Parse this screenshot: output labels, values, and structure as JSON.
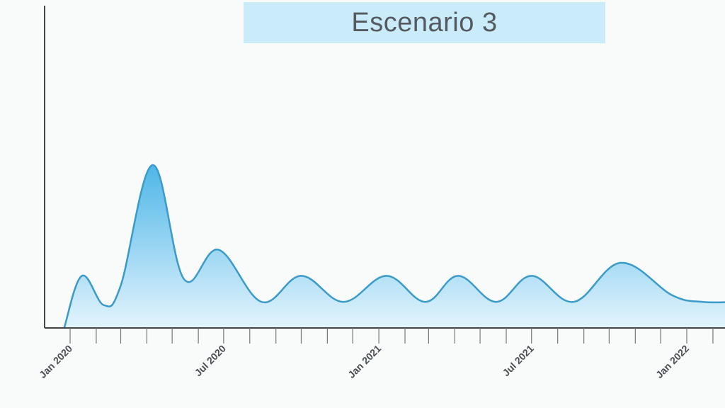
{
  "chart_data": {
    "type": "area",
    "title": "Escenario 3",
    "xlabel": "",
    "ylabel": "",
    "grid": false,
    "x_range": [
      "2019-12-25",
      "2022-03-01"
    ],
    "ylim": [
      0,
      10
    ],
    "tick_labels": [
      {
        "date": "2020-01-01",
        "label": "Jan 2020"
      },
      {
        "date": "2020-07-01",
        "label": "Jul 2020"
      },
      {
        "date": "2021-01-01",
        "label": "Jan 2021"
      },
      {
        "date": "2021-07-01",
        "label": "Jul 2021"
      },
      {
        "date": "2022-01-01",
        "label": "Jan 2022"
      }
    ],
    "minor_ticks": [
      "2020-02-01",
      "2020-03-01",
      "2020-04-01",
      "2020-05-01",
      "2020-06-01",
      "2020-08-01",
      "2020-09-01",
      "2020-10-01",
      "2020-11-01",
      "2020-12-01",
      "2021-02-01",
      "2021-03-01",
      "2021-04-01",
      "2021-05-01",
      "2021-06-01",
      "2021-08-01",
      "2021-09-01",
      "2021-10-01",
      "2021-11-01",
      "2021-12-01",
      "2022-02-01"
    ],
    "series": [
      {
        "points": [
          {
            "x": "2019-12-25",
            "y": 0.0
          },
          {
            "x": "2020-01-15",
            "y": 1.6
          },
          {
            "x": "2020-02-10",
            "y": 0.7
          },
          {
            "x": "2020-03-01",
            "y": 1.3
          },
          {
            "x": "2020-04-08",
            "y": 5.0
          },
          {
            "x": "2020-05-15",
            "y": 1.5
          },
          {
            "x": "2020-06-25",
            "y": 2.4
          },
          {
            "x": "2020-08-15",
            "y": 0.8
          },
          {
            "x": "2020-10-01",
            "y": 1.6
          },
          {
            "x": "2020-11-20",
            "y": 0.8
          },
          {
            "x": "2021-01-10",
            "y": 1.6
          },
          {
            "x": "2021-02-25",
            "y": 0.8
          },
          {
            "x": "2021-04-05",
            "y": 1.6
          },
          {
            "x": "2021-05-20",
            "y": 0.8
          },
          {
            "x": "2021-07-01",
            "y": 1.6
          },
          {
            "x": "2021-08-20",
            "y": 0.8
          },
          {
            "x": "2021-10-15",
            "y": 2.0
          },
          {
            "x": "2021-12-15",
            "y": 1.0
          },
          {
            "x": "2022-01-20",
            "y": 0.8
          },
          {
            "x": "2022-03-01",
            "y": 0.8
          }
        ]
      }
    ],
    "colors": {
      "line": "#3a9bc8",
      "fill_top": "#4fb6e8",
      "fill_bottom": "#e3f4fd",
      "axis": "#444444",
      "title_bg": "#c9ebfa",
      "title_text": "#555a5f"
    }
  }
}
